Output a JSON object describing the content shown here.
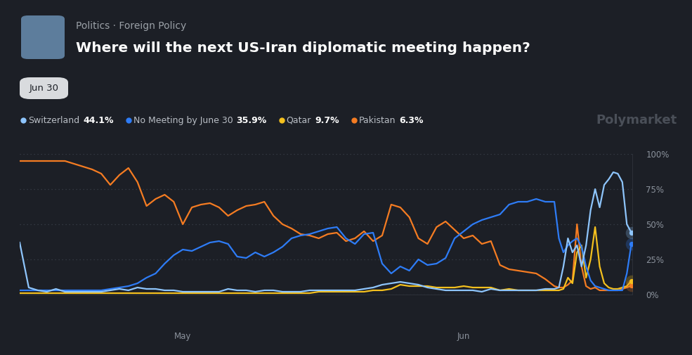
{
  "chart_data": {
    "type": "line",
    "breadcrumb": "Politics · Foreign Policy",
    "title": "Where will the next US-Iran diplomatic meeting happen?",
    "date_button": "Jun 30",
    "watermark": "Polymarket",
    "grid": true,
    "x": [
      0,
      1,
      2,
      3,
      4,
      5,
      6,
      7,
      8,
      9,
      10,
      11,
      12,
      13,
      14,
      15,
      16,
      17,
      18,
      19,
      20,
      21,
      22,
      23,
      24,
      25,
      26,
      27,
      28,
      29,
      30,
      31,
      32,
      33,
      34,
      35,
      36,
      37,
      38,
      39,
      40,
      41,
      42,
      43,
      44,
      45,
      46,
      47,
      48,
      49,
      50,
      51,
      52,
      53,
      54,
      55,
      56,
      57,
      58,
      59,
      59.5,
      60,
      60.5,
      61,
      61.5,
      62,
      62.5,
      63,
      63.5,
      64,
      64.5,
      65,
      65.5,
      66,
      66.5,
      67,
      67.5
    ],
    "xlim": [
      0,
      67.6
    ],
    "xticks": [
      {
        "value": 18,
        "label": "May"
      },
      {
        "value": 49,
        "label": "Jun"
      }
    ],
    "ylim": [
      0,
      100
    ],
    "yticks": [
      {
        "value": 0,
        "label": "0%"
      },
      {
        "value": 25,
        "label": "25%"
      },
      {
        "value": 50,
        "label": "50%"
      },
      {
        "value": 75,
        "label": "75%"
      },
      {
        "value": 100,
        "label": "100%"
      }
    ],
    "series": [
      {
        "name": "Switzerland",
        "current": "44.1%",
        "color": "#8ec5fc",
        "values": [
          37,
          5,
          3,
          2,
          4,
          2,
          2,
          2,
          2,
          2,
          3,
          4,
          3,
          5,
          4,
          4,
          3,
          3,
          2,
          2,
          2,
          2,
          2,
          4,
          3,
          3,
          2,
          3,
          3,
          2,
          2,
          2,
          3,
          3,
          3,
          3,
          3,
          3,
          4,
          5,
          7,
          8,
          9,
          8,
          7,
          5,
          4,
          3,
          3,
          3,
          3,
          2,
          4,
          3,
          3,
          3,
          3,
          3,
          4,
          4,
          5,
          20,
          40,
          30,
          35,
          20,
          35,
          60,
          75,
          62,
          78,
          82,
          87,
          86,
          80,
          50,
          44.1
        ]
      },
      {
        "name": "No Meeting by June 30",
        "current": "35.9%",
        "color": "#2e7cf6",
        "values": [
          3,
          3,
          3,
          3,
          3,
          3,
          3,
          3,
          3,
          3,
          4,
          5,
          6,
          8,
          12,
          15,
          22,
          28,
          32,
          31,
          34,
          37,
          38,
          36,
          27,
          26,
          30,
          27,
          30,
          34,
          40,
          42,
          43,
          45,
          47,
          48,
          40,
          36,
          43,
          44,
          22,
          15,
          20,
          17,
          25,
          21,
          22,
          26,
          40,
          45,
          50,
          53,
          55,
          57,
          64,
          66,
          66,
          68,
          66,
          66,
          40,
          30,
          35,
          38,
          40,
          34,
          20,
          10,
          6,
          5,
          4,
          3,
          3,
          3,
          3,
          15,
          35.9
        ]
      },
      {
        "name": "Qatar",
        "current": "9.7%",
        "color": "#f4c01e",
        "values": [
          1,
          1,
          1,
          1,
          1,
          1,
          1,
          1,
          1,
          1,
          1,
          1,
          1,
          1,
          1,
          1,
          1,
          1,
          1,
          1,
          1,
          1,
          1,
          1,
          1,
          1,
          1,
          1,
          1,
          1,
          1,
          1,
          1,
          2,
          2,
          2,
          2,
          2,
          2,
          3,
          3,
          4,
          7,
          6,
          6,
          6,
          5,
          5,
          5,
          6,
          5,
          5,
          5,
          3,
          4,
          3,
          3,
          3,
          3,
          3,
          3,
          4,
          12,
          8,
          30,
          35,
          12,
          25,
          48,
          20,
          8,
          5,
          4,
          4,
          5,
          6,
          9.7
        ]
      },
      {
        "name": "Pakistan",
        "current": "6.3%",
        "color": "#f57c22",
        "values": [
          95,
          95,
          95,
          95,
          95,
          95,
          93,
          91,
          89,
          86,
          78,
          85,
          90,
          80,
          63,
          68,
          71,
          66,
          50,
          62,
          64,
          65,
          62,
          56,
          60,
          63,
          64,
          66,
          56,
          50,
          47,
          43,
          42,
          40,
          43,
          44,
          38,
          40,
          45,
          38,
          42,
          64,
          62,
          55,
          40,
          36,
          48,
          52,
          46,
          40,
          42,
          36,
          38,
          21,
          18,
          17,
          16,
          15,
          11,
          6,
          5,
          5,
          7,
          10,
          50,
          20,
          6,
          4,
          5,
          3,
          3,
          3,
          3,
          3,
          4,
          5,
          6.3
        ]
      }
    ]
  }
}
